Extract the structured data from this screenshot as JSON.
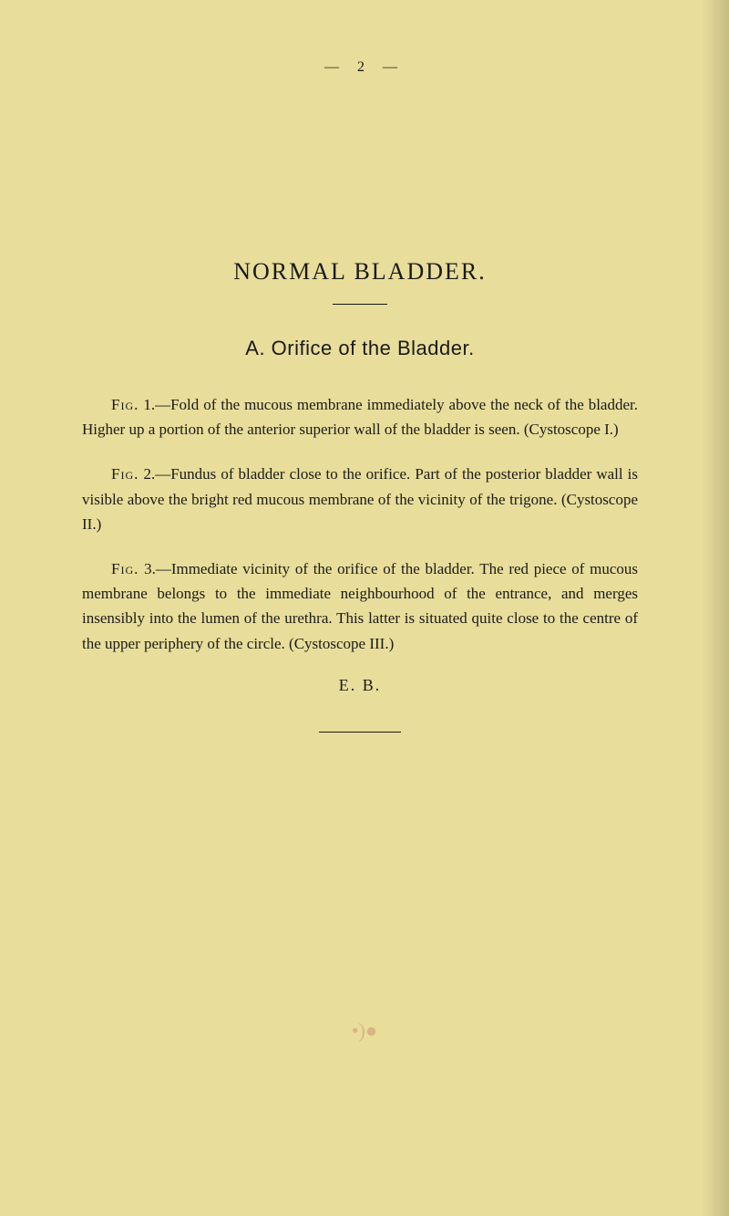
{
  "page": {
    "number_display": "—   2   —",
    "background_color": "#e8dd9a",
    "text_color": "#1a1a1a"
  },
  "title": {
    "main": "NORMAL BLADDER.",
    "main_fontsize": 26,
    "section": "A.  Orifice of the Bladder.",
    "section_fontsize": 22
  },
  "figures": {
    "fig1": {
      "label": "Fig.",
      "number": "1.",
      "text": "—Fold of the mucous membrane immediately above the neck of the bladder. Higher up a portion of the anterior superior wall of the bladder is seen. (Cystoscope I.)"
    },
    "fig2": {
      "label": "Fig.",
      "number": "2.",
      "text": "—Fundus of bladder close to the orifice. Part of the posterior bladder wall is visible above the bright red mucous membrane of the vicinity of the trigone. (Cystoscope II.)"
    },
    "fig3": {
      "label": "Fig.",
      "number": "3.",
      "text": "—Immediate vicinity of the orifice of the bladder. The red piece of mucous membrane belongs to the immediate neighbourhood of the entrance, and merges insensibly into the lumen of the urethra. This latter is situated quite close to the centre of the upper periphery of the circle. (Cystoscope III.)"
    }
  },
  "signature": "E. B.",
  "typography": {
    "body_fontsize": 17,
    "line_height": 1.6
  }
}
